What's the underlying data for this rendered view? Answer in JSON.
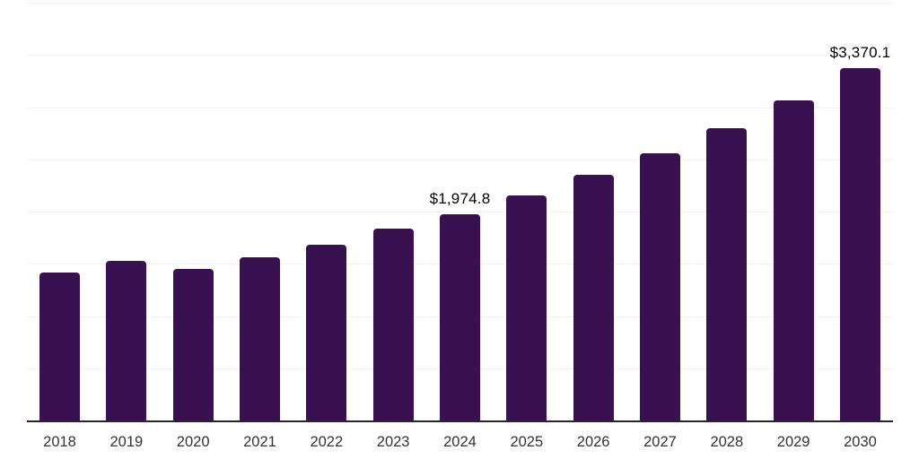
{
  "chart_data": {
    "type": "bar",
    "title": "",
    "xlabel": "",
    "ylabel": "",
    "categories": [
      "2018",
      "2019",
      "2020",
      "2021",
      "2022",
      "2023",
      "2024",
      "2025",
      "2026",
      "2027",
      "2028",
      "2029",
      "2030"
    ],
    "values": [
      1420,
      1525,
      1455,
      1565,
      1685,
      1835,
      1974.8,
      2155,
      2350,
      2560,
      2795,
      3065,
      3370.1
    ],
    "data_labels": [
      "",
      "",
      "",
      "",
      "",
      "",
      "$1,974.8",
      "",
      "",
      "",
      "",
      "",
      "$3,370.1"
    ],
    "ylim": [
      0,
      4000
    ],
    "gridline_step": 500,
    "grid": true,
    "legend_position": "none"
  },
  "colors": {
    "bar": "#391150",
    "gridline": "#f2f2f2",
    "axis": "#272727",
    "tick_label": "#333333",
    "value_label": "#000000",
    "background": "#ffffff"
  }
}
